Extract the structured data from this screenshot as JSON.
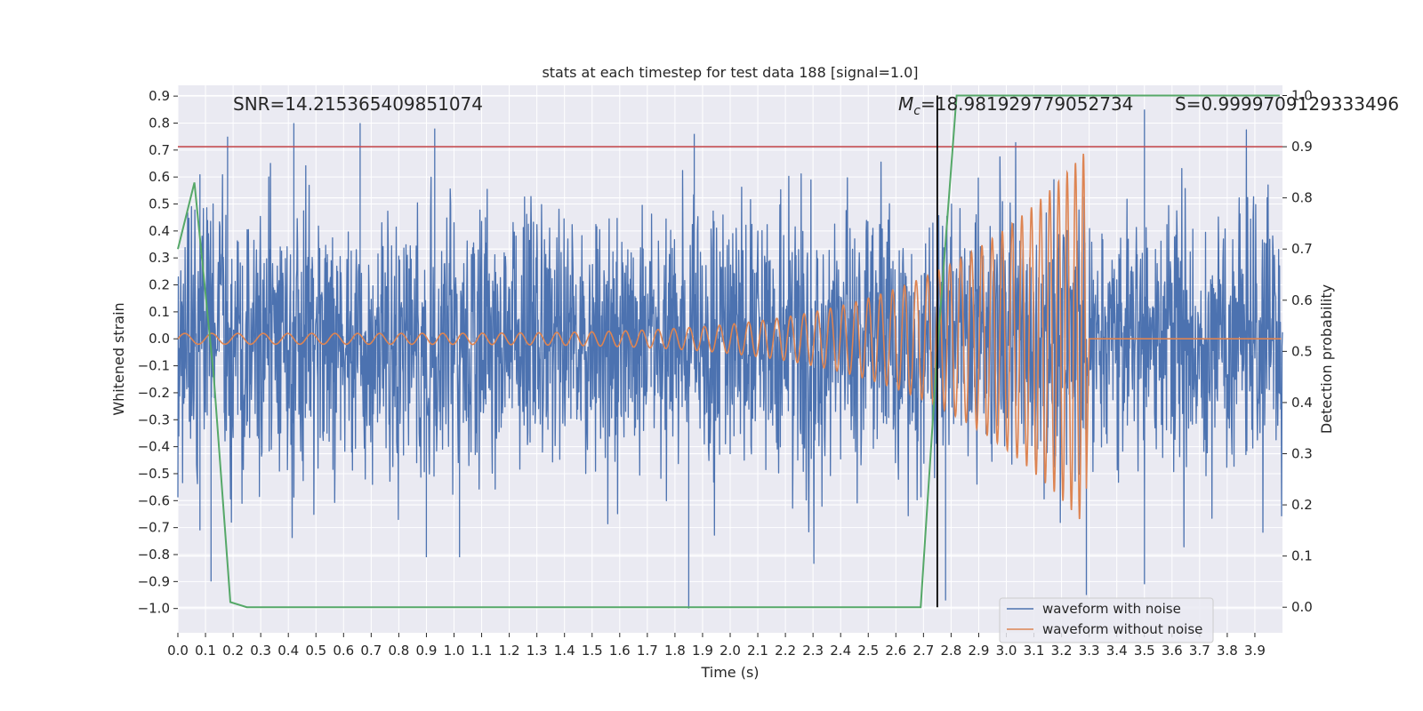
{
  "chart_data": {
    "type": "line",
    "title": "stats at each timestep for test data 188 [signal=1.0]",
    "xlabel": "Time (s)",
    "ylabel": "Whitened strain",
    "y2label": "Detection probability",
    "xlim": [
      0.0,
      4.0
    ],
    "ylim": [
      -1.09,
      0.94
    ],
    "y2lim": [
      -0.05,
      1.02
    ],
    "xticks": [
      "0.0",
      "0.1",
      "0.2",
      "0.3",
      "0.4",
      "0.5",
      "0.6",
      "0.7",
      "0.8",
      "0.9",
      "1.0",
      "1.1",
      "1.2",
      "1.3",
      "1.4",
      "1.5",
      "1.6",
      "1.7",
      "1.8",
      "1.9",
      "2.0",
      "2.1",
      "2.2",
      "2.3",
      "2.4",
      "2.5",
      "2.6",
      "2.7",
      "2.8",
      "2.9",
      "3.0",
      "3.1",
      "3.2",
      "3.3",
      "3.4",
      "3.5",
      "3.6",
      "3.7",
      "3.8",
      "3.9"
    ],
    "yticks": [
      "0.9",
      "0.8",
      "0.7",
      "0.6",
      "0.5",
      "0.4",
      "0.3",
      "0.2",
      "0.1",
      "0.0",
      "−0.1",
      "−0.2",
      "−0.3",
      "−0.4",
      "−0.5",
      "−0.6",
      "−0.7",
      "−0.8",
      "−0.9",
      "−1.0"
    ],
    "y2ticks": [
      "1.0",
      "0.9",
      "0.8",
      "0.7",
      "0.6",
      "0.5",
      "0.4",
      "0.3",
      "0.2",
      "0.1",
      "0.0"
    ],
    "threshold": 0.9,
    "merger_time": 2.75,
    "legend": [
      "waveform with noise",
      "waveform without noise"
    ],
    "legend_position": "lower-right",
    "series": [
      {
        "name": "waveform with noise",
        "color": "#4c72b0",
        "x_start": 0.0,
        "x_end": 4.0,
        "amplitude": 0.32,
        "peak_points": [
          [
            0.08,
            0.61
          ],
          [
            0.08,
            -0.71
          ],
          [
            0.12,
            -0.9
          ],
          [
            0.18,
            0.75
          ],
          [
            0.42,
            0.8
          ],
          [
            0.66,
            0.8
          ],
          [
            0.9,
            -0.81
          ],
          [
            0.93,
            0.78
          ],
          [
            1.02,
            -0.81
          ],
          [
            1.85,
            -1.0
          ],
          [
            1.87,
            0.76
          ],
          [
            2.78,
            -0.97
          ],
          [
            3.29,
            -0.95
          ],
          [
            3.5,
            0.85
          ],
          [
            3.5,
            -0.91
          ]
        ]
      },
      {
        "name": "waveform without noise",
        "color": "#dd8452",
        "x_start": 0.0,
        "x_end": 3.29,
        "frequency_start_hz": 10,
        "frequency_end_hz": 40,
        "amplitude_start": 0.02,
        "amplitude_end": 0.7,
        "after_merger_value": 0.0
      },
      {
        "name": "detection probability",
        "color": "#55a868",
        "axis": "right",
        "x": [
          0.0,
          0.06,
          0.13,
          0.19,
          0.25,
          2.69,
          2.75,
          2.82,
          3.99
        ],
        "y": [
          0.7,
          0.83,
          0.45,
          0.01,
          0.0,
          0.0,
          0.5,
          1.0,
          1.0
        ]
      }
    ],
    "annotations": {
      "snr": "SNR=14.215365409851074",
      "mc_symbol": "M",
      "mc_subscript": "c",
      "mc_value": "=18.981929779052734",
      "s_value": "S=0.9999709129333496"
    }
  }
}
